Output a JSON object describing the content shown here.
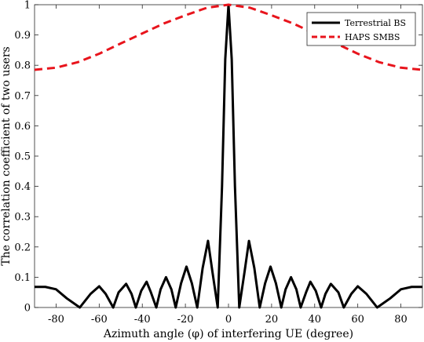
{
  "chart_data": {
    "type": "line",
    "title": "",
    "xlabel": "Azimuth angle (φ) of interfering UE (degree)",
    "ylabel": "The correlation coefficient of two users",
    "xlim": [
      -90,
      90
    ],
    "ylim": [
      0,
      1
    ],
    "x_ticks": [
      -80,
      -60,
      -40,
      -20,
      0,
      20,
      40,
      60,
      80
    ],
    "x_tick_labels": [
      "-80",
      "-60",
      "-40",
      "-20",
      "0",
      "20",
      "40",
      "60",
      "80"
    ],
    "y_ticks": [
      0,
      0.1,
      0.2,
      0.3,
      0.4,
      0.5,
      0.6,
      0.7,
      0.8,
      0.9,
      1
    ],
    "y_tick_labels": [
      "0",
      "0.1",
      "0.2",
      "0.3",
      "0.4",
      "0.5",
      "0.6",
      "0.7",
      "0.8",
      "0.9",
      "1"
    ],
    "grid": false,
    "legend_position": "top-right",
    "series": [
      {
        "name": "Terrestrial BS",
        "color": "#000000",
        "style": "solid",
        "x": [
          -90,
          -85,
          -80,
          -75,
          -69,
          -64,
          -60,
          -57,
          -53.5,
          -51,
          -47.5,
          -45,
          -43,
          -40.5,
          -38,
          -36,
          -33.5,
          -31.5,
          -29,
          -26.5,
          -24.5,
          -22,
          -19.5,
          -17,
          -14.5,
          -12,
          -9.5,
          -7.5,
          -5,
          -3,
          -1.5,
          0,
          1.5,
          3,
          5,
          7.5,
          9.5,
          12,
          14.5,
          17,
          19.5,
          22,
          24.5,
          26.5,
          29,
          31.5,
          33.5,
          36,
          38,
          40.5,
          43,
          45,
          47.5,
          51,
          53.5,
          57,
          60,
          64,
          69,
          75,
          80,
          85,
          90
        ],
        "y": [
          0.068,
          0.068,
          0.06,
          0.03,
          0.0,
          0.045,
          0.07,
          0.045,
          0.0,
          0.05,
          0.078,
          0.045,
          0.0,
          0.055,
          0.085,
          0.05,
          0.0,
          0.06,
          0.1,
          0.06,
          0.0,
          0.08,
          0.135,
          0.08,
          0.0,
          0.13,
          0.22,
          0.12,
          0.0,
          0.4,
          0.82,
          1.0,
          0.82,
          0.4,
          0.0,
          0.12,
          0.22,
          0.13,
          0.0,
          0.08,
          0.135,
          0.08,
          0.0,
          0.06,
          0.1,
          0.06,
          0.0,
          0.05,
          0.085,
          0.055,
          0.0,
          0.045,
          0.078,
          0.05,
          0.0,
          0.045,
          0.07,
          0.045,
          0.0,
          0.03,
          0.06,
          0.068,
          0.068
        ]
      },
      {
        "name": "HAPS SMBS",
        "color": "#e8141c",
        "style": "dashed",
        "x": [
          -90,
          -80,
          -70,
          -60,
          -50,
          -40,
          -30,
          -20,
          -10,
          0,
          10,
          20,
          30,
          40,
          50,
          60,
          70,
          80,
          90
        ],
        "y": [
          0.785,
          0.792,
          0.81,
          0.838,
          0.872,
          0.905,
          0.938,
          0.965,
          0.99,
          1.0,
          0.99,
          0.965,
          0.938,
          0.905,
          0.872,
          0.838,
          0.81,
          0.792,
          0.785
        ]
      }
    ]
  }
}
